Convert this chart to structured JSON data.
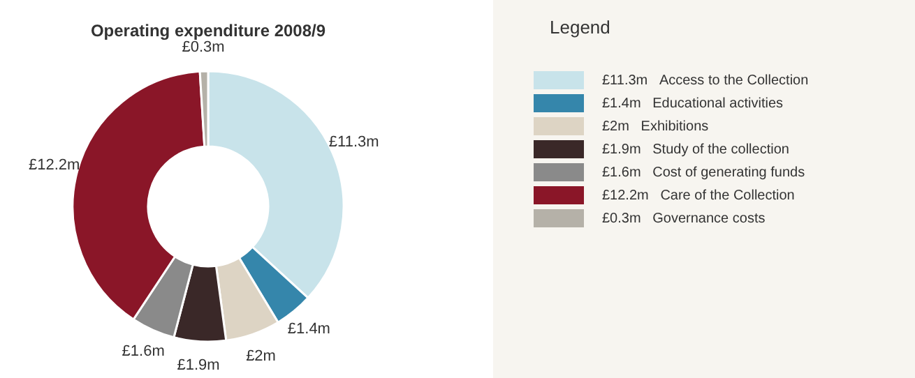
{
  "chart_data": {
    "type": "donut",
    "title": "Operating expenditure 2008/9",
    "legend_title": "Legend",
    "legend": "right",
    "categories": [
      "Access to the Collection",
      "Educational activities",
      "Exhibitions",
      "Study of the collection",
      "Cost of generating funds",
      "Care of the Collection",
      "Governance costs"
    ],
    "values": [
      11.3,
      1.4,
      2,
      1.9,
      1.6,
      12.2,
      0.3
    ],
    "value_labels": [
      "£11.3m",
      "£1.4m",
      "£2m",
      "£1.9m",
      "£1.6m",
      "£12.2m",
      "£0.3m"
    ],
    "colors": [
      "#c8e3ea",
      "#3586ab",
      "#ddd4c4",
      "#3a2828",
      "#8a8a8a",
      "#8a1628",
      "#b5b1a8"
    ]
  }
}
